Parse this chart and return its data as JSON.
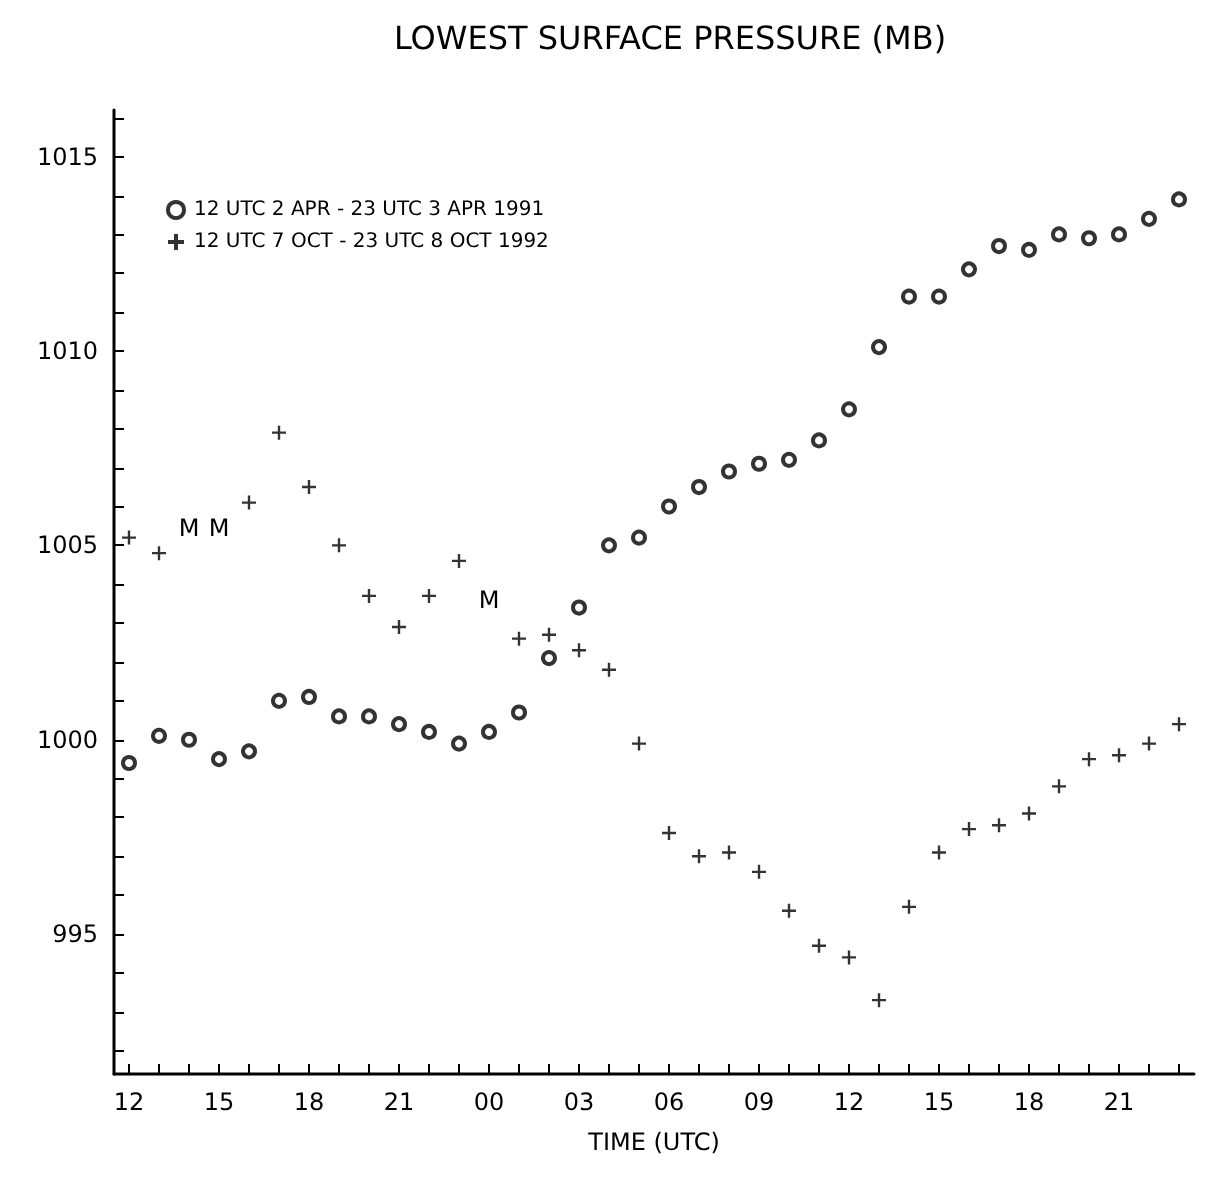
{
  "chart_data": {
    "type": "scatter",
    "title": "LOWEST SURFACE PRESSURE (MB)",
    "xlabel": "TIME (UTC)",
    "x": [
      12,
      13,
      14,
      15,
      16,
      17,
      18,
      19,
      20,
      21,
      22,
      23,
      24,
      25,
      26,
      27,
      28,
      29,
      30,
      31,
      32,
      33,
      34,
      35,
      36,
      37,
      38,
      39,
      40,
      41,
      42,
      43,
      44,
      45,
      46,
      47
    ],
    "series": [
      {
        "name": "12 UTC 2 APR - 23 UTC 3 APR 1991",
        "color": "#000000",
        "marker": "circle",
        "values": [
          999.4,
          1000.1,
          1000.0,
          999.5,
          999.7,
          1001.0,
          1001.1,
          1000.6,
          1000.6,
          1000.4,
          1000.2,
          999.9,
          1000.2,
          1000.7,
          1002.1,
          1003.4,
          1005.0,
          1005.2,
          1006.0,
          1006.5,
          1006.9,
          1007.1,
          1007.2,
          1007.7,
          1008.5,
          1010.1,
          1011.4,
          1011.4,
          1012.1,
          1012.7,
          1012.6,
          1013.0,
          1012.9,
          1013.0,
          1013.4,
          1013.9
        ]
      },
      {
        "name": "12 UTC 7 OCT - 23 UTC 8 OCT 1992",
        "color": "#000000",
        "marker": "cross",
        "values": [
          1005.2,
          1004.8,
          null,
          null,
          1006.1,
          1007.9,
          1006.5,
          1005.0,
          1003.7,
          1002.9,
          1003.7,
          1004.6,
          null,
          1002.6,
          1002.7,
          1002.3,
          1001.8,
          999.9,
          997.6,
          997.0,
          997.1,
          996.6,
          995.6,
          994.7,
          994.4,
          993.3,
          995.7,
          997.1,
          997.7,
          997.8,
          998.1,
          998.8,
          999.5,
          999.6,
          999.9,
          1000.4
        ]
      }
    ],
    "annotations": [
      "M",
      "M",
      "M"
    ],
    "xlim": [
      11.5,
      47.5
    ],
    "xticks": [
      {
        "value": 12,
        "label": "12"
      },
      {
        "value": 13,
        "label": null
      },
      {
        "value": 14,
        "label": null
      },
      {
        "value": 15,
        "label": "15"
      },
      {
        "value": 16,
        "label": null
      },
      {
        "value": 17,
        "label": null
      },
      {
        "value": 18,
        "label": "18"
      },
      {
        "value": 19,
        "label": null
      },
      {
        "value": 20,
        "label": null
      },
      {
        "value": 21,
        "label": "21"
      },
      {
        "value": 22,
        "label": null
      },
      {
        "value": 23,
        "label": null
      },
      {
        "value": 24,
        "label": "00"
      },
      {
        "value": 25,
        "label": null
      },
      {
        "value": 26,
        "label": null
      },
      {
        "value": 27,
        "label": "03"
      },
      {
        "value": 28,
        "label": null
      },
      {
        "value": 29,
        "label": null
      },
      {
        "value": 30,
        "label": "06"
      },
      {
        "value": 31,
        "label": null
      },
      {
        "value": 32,
        "label": null
      },
      {
        "value": 33,
        "label": "09"
      },
      {
        "value": 34,
        "label": null
      },
      {
        "value": 35,
        "label": null
      },
      {
        "value": 36,
        "label": "12"
      },
      {
        "value": 37,
        "label": null
      },
      {
        "value": 38,
        "label": null
      },
      {
        "value": 39,
        "label": "15"
      },
      {
        "value": 40,
        "label": null
      },
      {
        "value": 41,
        "label": null
      },
      {
        "value": 42,
        "label": "18"
      },
      {
        "value": 43,
        "label": null
      },
      {
        "value": 44,
        "label": null
      },
      {
        "value": 45,
        "label": "21"
      },
      {
        "value": 46,
        "label": null
      },
      {
        "value": 47,
        "label": null
      }
    ],
    "ylim": [
      991.4,
      1016.2
    ],
    "yticks": [
      {
        "value": 992,
        "label": null
      },
      {
        "value": 993,
        "label": null
      },
      {
        "value": 994,
        "label": null
      },
      995,
      {
        "value": 996,
        "label": null
      },
      {
        "value": 997,
        "label": null
      },
      {
        "value": 998,
        "label": null
      },
      {
        "value": 999,
        "label": null
      },
      1000,
      {
        "value": 1001,
        "label": null
      },
      {
        "value": 1002,
        "label": null
      },
      {
        "value": 1003,
        "label": null
      },
      {
        "value": 1004,
        "label": null
      },
      1005,
      {
        "value": 1006,
        "label": null
      },
      {
        "value": 1007,
        "label": null
      },
      {
        "value": 1008,
        "label": null
      },
      {
        "value": 1009,
        "label": null
      },
      1010,
      {
        "value": 1011,
        "label": null
      },
      {
        "value": 1012,
        "label": null
      },
      {
        "value": 1013,
        "label": null
      },
      {
        "value": 1014,
        "label": null
      },
      1015,
      {
        "value": 1016,
        "label": null
      }
    ],
    "grid": false,
    "legend": "top left"
  }
}
